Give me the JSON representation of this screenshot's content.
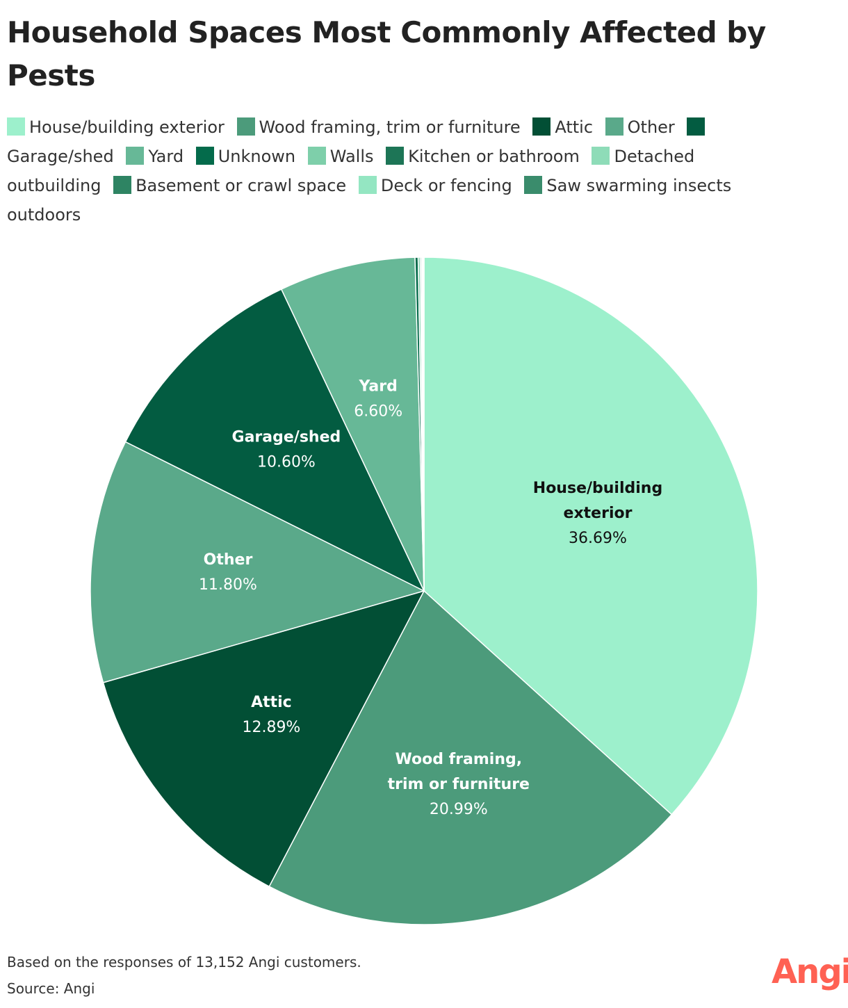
{
  "chart_data": {
    "type": "pie",
    "title": "Household Spaces Most Commonly Affected by Pests",
    "slices": [
      {
        "name": "House/building exterior",
        "label_lines": [
          "House/building",
          "exterior"
        ],
        "value": 36.69,
        "value_label": "36.69%",
        "color": "#9df0cc",
        "label_color": "#111111"
      },
      {
        "name": "Wood framing, trim or furniture",
        "label_lines": [
          "Wood framing,",
          "trim or furniture"
        ],
        "value": 20.99,
        "value_label": "20.99%",
        "color": "#4c9b7b",
        "label_color": "#ffffff"
      },
      {
        "name": "Attic",
        "label_lines": [
          "Attic"
        ],
        "value": 12.89,
        "value_label": "12.89%",
        "color": "#024f35",
        "label_color": "#ffffff"
      },
      {
        "name": "Other",
        "label_lines": [
          "Other"
        ],
        "value": 11.8,
        "value_label": "11.80%",
        "color": "#5aa98a",
        "label_color": "#ffffff"
      },
      {
        "name": "Garage/shed",
        "label_lines": [
          "Garage/shed"
        ],
        "value": 10.6,
        "value_label": "10.60%",
        "color": "#035c41",
        "label_color": "#ffffff"
      },
      {
        "name": "Yard",
        "label_lines": [
          "Yard"
        ],
        "value": 6.6,
        "value_label": "6.60%",
        "color": "#67b897",
        "label_color": "#ffffff"
      },
      {
        "name": "Unknown",
        "value": 0.15,
        "color": "#046b4b"
      },
      {
        "name": "Walls",
        "value": 0.1,
        "color": "#7ecfaa"
      },
      {
        "name": "Kitchen or bathroom",
        "value": 0.06,
        "color": "#1d7556"
      },
      {
        "name": "Detached outbuilding",
        "value": 0.05,
        "color": "#8edcb8"
      },
      {
        "name": "Basement or crawl space",
        "value": 0.03,
        "color": "#2e8463"
      },
      {
        "name": "Deck or fencing",
        "value": 0.02,
        "color": "#94e6c2"
      },
      {
        "name": "Saw swarming insects outdoors",
        "value": 0.02,
        "color": "#3a8c6c"
      }
    ],
    "legend": [
      "House/building exterior",
      "Wood framing, trim or furniture",
      "Attic",
      "Other",
      "Garage/shed",
      "Yard",
      "Unknown",
      "Walls",
      "Kitchen or bathroom",
      "Detached outbuilding",
      "Basement or crawl space",
      "Deck or fencing",
      "Saw swarming insects outdoors"
    ],
    "legend_position": "top",
    "start": "12 o'clock, clockwise"
  },
  "footer": {
    "note": "Based on the responses of 13,152 Angi customers.",
    "source": "Source: Angi"
  },
  "brand": {
    "logo_text": "Angi",
    "logo_color": "#ff6153"
  }
}
